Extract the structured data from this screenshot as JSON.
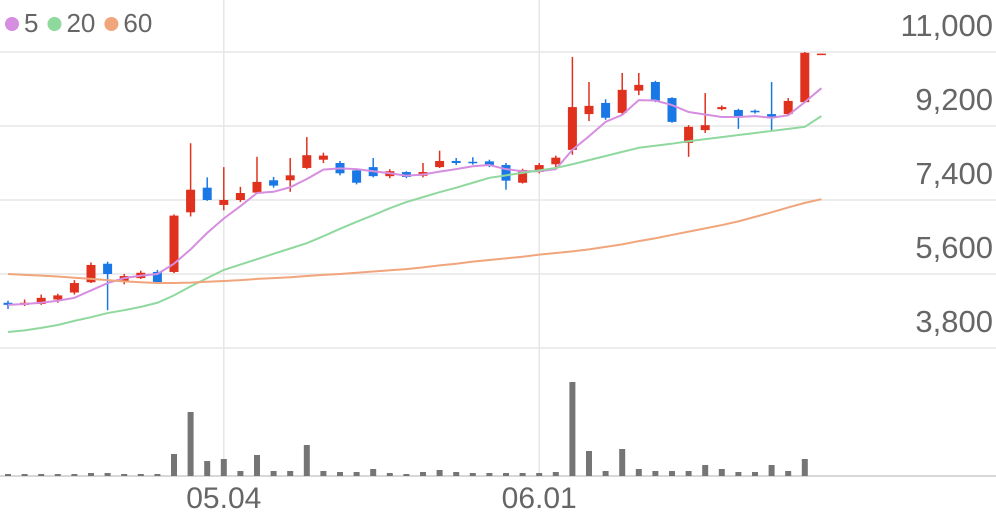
{
  "chart_data": {
    "type": "candlestick",
    "categories": [
      null,
      null,
      null,
      null,
      null,
      null,
      null,
      null,
      null,
      null,
      null,
      null,
      null,
      "05.04",
      null,
      null,
      null,
      null,
      null,
      null,
      null,
      null,
      null,
      null,
      null,
      null,
      null,
      null,
      null,
      null,
      null,
      null,
      "06.01",
      null,
      null,
      null,
      null,
      null,
      null,
      null,
      null,
      null,
      null,
      null,
      null,
      null,
      null,
      null,
      null,
      null
    ],
    "open": [
      4900,
      4850,
      4870,
      4980,
      5150,
      5400,
      5850,
      5430,
      5500,
      5650,
      5650,
      7100,
      7700,
      7280,
      7400,
      7580,
      7880,
      7880,
      8180,
      8380,
      8300,
      8120,
      8200,
      7980,
      8080,
      7990,
      8200,
      8350,
      8330,
      8340,
      8250,
      7820,
      8080,
      8270,
      8620,
      9490,
      9760,
      9520,
      10060,
      10270,
      9880,
      8790,
      9100,
      9610,
      9590,
      9570,
      9490,
      9490,
      9780,
      10950
    ],
    "high": [
      4950,
      4980,
      5100,
      5120,
      5450,
      5880,
      5900,
      5600,
      5680,
      5700,
      7050,
      8780,
      7950,
      8200,
      7720,
      8450,
      7960,
      8420,
      8930,
      8550,
      8350,
      8150,
      8420,
      8150,
      8100,
      8300,
      8600,
      8420,
      8440,
      8380,
      8300,
      8160,
      8300,
      8480,
      10880,
      10270,
      9850,
      10490,
      10490,
      10300,
      9900,
      9220,
      10000,
      9700,
      9620,
      9600,
      10270,
      9880,
      11000,
      10960
    ],
    "low": [
      4750,
      4820,
      4850,
      4900,
      5100,
      5380,
      4720,
      5350,
      5480,
      5380,
      5620,
      7000,
      7380,
      7150,
      7350,
      7550,
      7700,
      7600,
      8150,
      8300,
      8000,
      7780,
      7950,
      7930,
      7930,
      7950,
      8180,
      8250,
      8260,
      8200,
      7650,
      7800,
      8050,
      8200,
      8500,
      9320,
      9350,
      9480,
      9950,
      9780,
      9280,
      8450,
      9030,
      9580,
      9130,
      9500,
      9100,
      9470,
      9760,
      10950
    ],
    "close": [
      4850,
      4900,
      5020,
      5080,
      5380,
      5820,
      5600,
      5550,
      5630,
      5400,
      7020,
      7650,
      7400,
      7400,
      7570,
      7840,
      7750,
      8000,
      8490,
      8480,
      8050,
      7820,
      7980,
      8100,
      7960,
      8080,
      8350,
      8300,
      8300,
      8230,
      7870,
      8130,
      8250,
      8430,
      9660,
      9690,
      9400,
      10080,
      10200,
      9810,
      9300,
      9180,
      9220,
      9660,
      9420,
      9540,
      9400,
      9810,
      10980,
      10960
    ],
    "volume": [
      2,
      2,
      2,
      2,
      2,
      3,
      3,
      2,
      2,
      2,
      22,
      64,
      15,
      17,
      5,
      21,
      5,
      5,
      31,
      5,
      4,
      4,
      7,
      3,
      2,
      4,
      6,
      4,
      3,
      3,
      3,
      3,
      3,
      4,
      94,
      25,
      5,
      27,
      7,
      5,
      5,
      5,
      11,
      7,
      4,
      4,
      11,
      5,
      17,
      0
    ],
    "volume_ylim": [
      0,
      100
    ],
    "up_color": "#e0301e",
    "down_color": "#1a78e6",
    "volume_color": "#757575",
    "series": [
      {
        "name": "5",
        "color": "#d58ee0",
        "values": [
          4850,
          4870,
          4900,
          4950,
          5020,
          5200,
          5380,
          5500,
          5560,
          5600,
          5850,
          6200,
          6600,
          6950,
          7250,
          7570,
          7600,
          7710,
          7910,
          8140,
          8170,
          8150,
          8100,
          8050,
          7990,
          8020,
          8090,
          8150,
          8220,
          8250,
          8150,
          8100,
          8100,
          8150,
          8620,
          8950,
          9300,
          9470,
          9830,
          9820,
          9710,
          9540,
          9480,
          9420,
          9420,
          9440,
          9400,
          9460,
          9780,
          10120
        ]
      },
      {
        "name": "20",
        "color": "#8fd89e",
        "values": [
          4190,
          4230,
          4290,
          4360,
          4460,
          4550,
          4650,
          4720,
          4800,
          4900,
          5080,
          5300,
          5500,
          5700,
          5830,
          5960,
          6090,
          6220,
          6350,
          6520,
          6700,
          6870,
          7030,
          7200,
          7350,
          7470,
          7590,
          7700,
          7820,
          7940,
          8000,
          8060,
          8120,
          8180,
          8270,
          8370,
          8470,
          8570,
          8670,
          8720,
          8770,
          8830,
          8880,
          8930,
          8980,
          9030,
          9080,
          9130,
          9180,
          9440
        ]
      },
      {
        "name": "60",
        "color": "#f0a57c",
        "values": [
          5600,
          5580,
          5560,
          5540,
          5510,
          5480,
          5450,
          5420,
          5400,
          5380,
          5380,
          5390,
          5410,
          5430,
          5450,
          5480,
          5500,
          5520,
          5550,
          5580,
          5600,
          5630,
          5660,
          5690,
          5720,
          5760,
          5810,
          5850,
          5900,
          5940,
          5980,
          6020,
          6070,
          6110,
          6150,
          6200,
          6260,
          6320,
          6400,
          6470,
          6550,
          6630,
          6710,
          6790,
          6880,
          6990,
          7100,
          7220,
          7330,
          7420
        ]
      }
    ],
    "ylim": [
      3800,
      11000
    ],
    "yticks": [
      {
        "value": 11000,
        "label": "11,000"
      },
      {
        "value": 9200,
        "label": "9,200"
      },
      {
        "value": 7400,
        "label": "7,400"
      },
      {
        "value": 5600,
        "label": "5,600"
      },
      {
        "value": 3800,
        "label": "3,800"
      }
    ],
    "grid": true
  }
}
